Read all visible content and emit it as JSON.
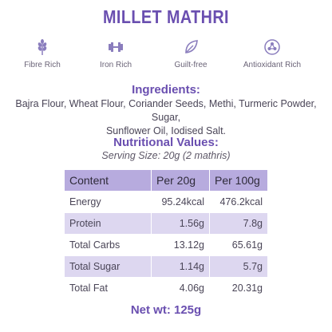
{
  "title": "MILLET MATHRI",
  "badges": [
    {
      "label": "Fibre Rich",
      "icon": "wheat-icon"
    },
    {
      "label": "Iron Rich",
      "icon": "dumbbell-icon"
    },
    {
      "label": "Guilt-free",
      "icon": "leaf-icon"
    },
    {
      "label": "Antioxidant Rich",
      "icon": "molecule-icon"
    }
  ],
  "ingredients": {
    "heading": "Ingredients:",
    "line1": "Bajra Flour, Wheat Flour, Coriander Seeds, Methi, Turmeric Powder, Sugar,",
    "line2": "Sunflower Oil, Iodised Salt."
  },
  "nutrition": {
    "heading": "Nutritional Values:",
    "serving": "Serving Size: 20g (2 mathris)",
    "headers": [
      "Content",
      "Per 20g",
      "Per 100g"
    ],
    "rows": [
      [
        "Energy",
        "95.24kcal",
        "476.2kcal"
      ],
      [
        "Protein",
        "1.56g",
        "7.8g"
      ],
      [
        "Total Carbs",
        "13.12g",
        "65.61g"
      ],
      [
        "Total Sugar",
        "1.14g",
        "5.7g"
      ],
      [
        "Total Fat",
        "4.06g",
        "20.31g"
      ]
    ]
  },
  "net_weight": "Net wt: 125g",
  "colors": {
    "accent": "#6a4fb0",
    "header_bg": "#b7abde",
    "row_shade": "#ddd7f0",
    "icon": "#8a7dbd"
  }
}
